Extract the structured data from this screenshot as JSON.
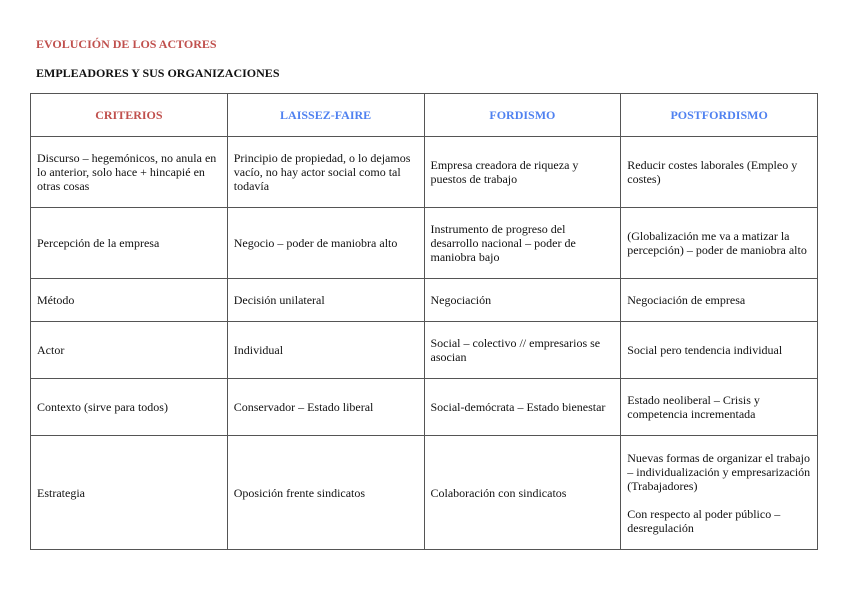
{
  "document": {
    "title": "EVOLUCIÓN DE LOS ACTORES",
    "subtitle": "EMPLEADORES Y SUS ORGANIZACIONES",
    "colors": {
      "title": "#c0504d",
      "header_blue": "#4f81f0"
    }
  },
  "table": {
    "headers": [
      "CRITERIOS",
      "LAISSEZ-FAIRE",
      "FORDISMO",
      "POSTFORDISMO"
    ],
    "rows": [
      [
        "Discurso – hegemónicos, no anula en lo anterior, solo hace + hincapié en otras cosas",
        "Principio de propiedad, o lo dejamos vacío, no hay actor social como tal todavía",
        "Empresa creadora de riqueza y puestos de trabajo",
        "Reducir costes laborales (Empleo y costes)"
      ],
      [
        "Percepción de la empresa",
        "Negocio – poder de maniobra alto",
        "Instrumento de progreso del desarrollo nacional – poder de maniobra bajo",
        "(Globalización me va a matizar la percepción) – poder de maniobra alto"
      ],
      [
        "Método",
        "Decisión unilateral",
        "Negociación",
        "Negociación de empresa"
      ],
      [
        "Actor",
        "Individual",
        "Social – colectivo // empresarios se asocian",
        "Social pero tendencia individual"
      ],
      [
        "Contexto (sirve para todos)",
        "Conservador – Estado liberal",
        "Social-demócrata – Estado bienestar",
        "Estado neoliberal – Crisis y competencia incrementada"
      ],
      [
        "Estrategia",
        "Oposición frente sindicatos",
        "Colaboración con sindicatos",
        "Nuevas formas de organizar el trabajo – individualización y empresarización (Trabajadores)"
      ]
    ],
    "last_cell_extra": "Con respecto al poder público – desregulación"
  }
}
